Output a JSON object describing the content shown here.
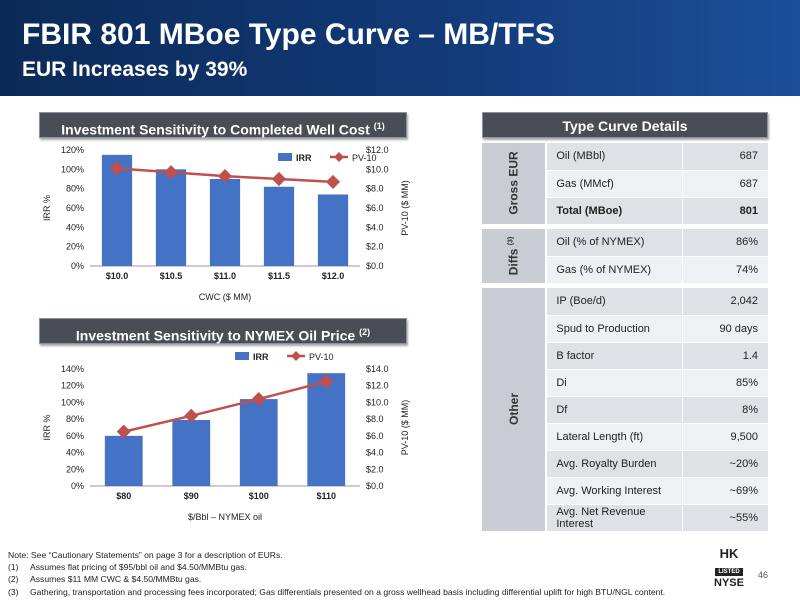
{
  "header": {
    "title": "FBIR 801 MBoe Type Curve – MB/TFS",
    "subtitle": "EUR Increases by 39%"
  },
  "chart1": {
    "banner": "Investment Sensitivity to Completed Well Cost",
    "banner_note": "(1)"
  },
  "chart2": {
    "banner": "Investment Sensitivity to NYMEX Oil Price",
    "banner_note": "(2)"
  },
  "chart_data": [
    {
      "type": "bar",
      "categories": [
        "$10.0",
        "$10.5",
        "$11.0",
        "$11.5",
        "$12.0"
      ],
      "series": [
        {
          "name": "IRR",
          "type": "bar",
          "axis": "left",
          "values": [
            115,
            100,
            90,
            82,
            74
          ]
        },
        {
          "name": "PV-10",
          "type": "line",
          "axis": "right",
          "values": [
            10.1,
            9.7,
            9.3,
            9.0,
            8.7
          ]
        }
      ],
      "xlabel": "CWC ($ MM)",
      "ylabel": "IRR %",
      "y2label": "PV-10 ($ MM)",
      "ylim": [
        0,
        120
      ],
      "yticks": [
        "0%",
        "20%",
        "40%",
        "60%",
        "80%",
        "100%",
        "120%"
      ],
      "y2lim": [
        0,
        12
      ],
      "y2ticks": [
        "$0.0",
        "$2.0",
        "$4.0",
        "$6.0",
        "$8.0",
        "$10.0",
        "$12.0"
      ],
      "legend": "top-right",
      "grid": false
    },
    {
      "type": "bar",
      "categories": [
        "$80",
        "$90",
        "$100",
        "$110"
      ],
      "series": [
        {
          "name": "IRR",
          "type": "bar",
          "axis": "left",
          "values": [
            60,
            79,
            104,
            135
          ]
        },
        {
          "name": "PV-10",
          "type": "line",
          "axis": "right",
          "values": [
            6.5,
            8.4,
            10.4,
            12.5
          ]
        }
      ],
      "xlabel": "$/Bbl – NYMEX oil",
      "ylabel": "IRR %",
      "y2label": "PV-10 ($ MM)",
      "ylim": [
        0,
        140
      ],
      "yticks": [
        "0%",
        "20%",
        "40%",
        "60%",
        "80%",
        "100%",
        "120%",
        "140%"
      ],
      "y2lim": [
        0,
        14
      ],
      "y2ticks": [
        "$0.0",
        "$2.0",
        "$4.0",
        "$6.0",
        "$8.0",
        "$10.0",
        "$12.0",
        "$14.0"
      ],
      "legend": "top-center",
      "grid": false
    }
  ],
  "details": {
    "banner": "Type Curve Details",
    "groups": {
      "gross_eur": "Gross EUR",
      "diffs": "Diffs",
      "diffs_note": "(3)",
      "other": "Other"
    },
    "rows": [
      {
        "label": "Oil (MBbl)",
        "value": "687"
      },
      {
        "label": "Gas (MMcf)",
        "value": "687"
      },
      {
        "label": "Total (MBoe)",
        "value": "801"
      },
      {
        "label": "Oil (% of NYMEX)",
        "value": "86%"
      },
      {
        "label": "Gas (% of NYMEX)",
        "value": "74%"
      },
      {
        "label": "IP (Boe/d)",
        "value": "2,042"
      },
      {
        "label": "Spud to Production",
        "value": "90 days"
      },
      {
        "label": "B factor",
        "value": "1.4"
      },
      {
        "label": "Di",
        "value": "85%"
      },
      {
        "label": "Df",
        "value": "8%"
      },
      {
        "label": "Lateral Length (ft)",
        "value": "9,500"
      },
      {
        "label": "Avg. Royalty Burden",
        "value": "~20%"
      },
      {
        "label": "Avg. Working Interest",
        "value": "~69%"
      },
      {
        "label": "Avg. Net Revenue Interest",
        "value": "~55%"
      }
    ]
  },
  "notes": {
    "intro": "Note: See “Cautionary Statements” on page 3 for a description of EURs.",
    "items": [
      {
        "num": "(1)",
        "text": "Assumes flat pricing of $95/bbl oil and $4.50/MMBtu gas."
      },
      {
        "num": "(2)",
        "text": "Assumes $11 MM CWC & $4.50/MMBtu gas."
      },
      {
        "num": "(3)",
        "text": "Gathering, transportation and processing fees incorporated; Gas differentials presented on a gross wellhead basis including differential uplift for high BTU/NGL content."
      }
    ]
  },
  "page_number": "46",
  "logo": {
    "top": "HK",
    "middle": "LISTED",
    "bottom": "NYSE"
  },
  "colors": {
    "bar": "#4472c4",
    "line": "#c0504d",
    "banner": "#4a4d55",
    "header": "#123a78"
  }
}
